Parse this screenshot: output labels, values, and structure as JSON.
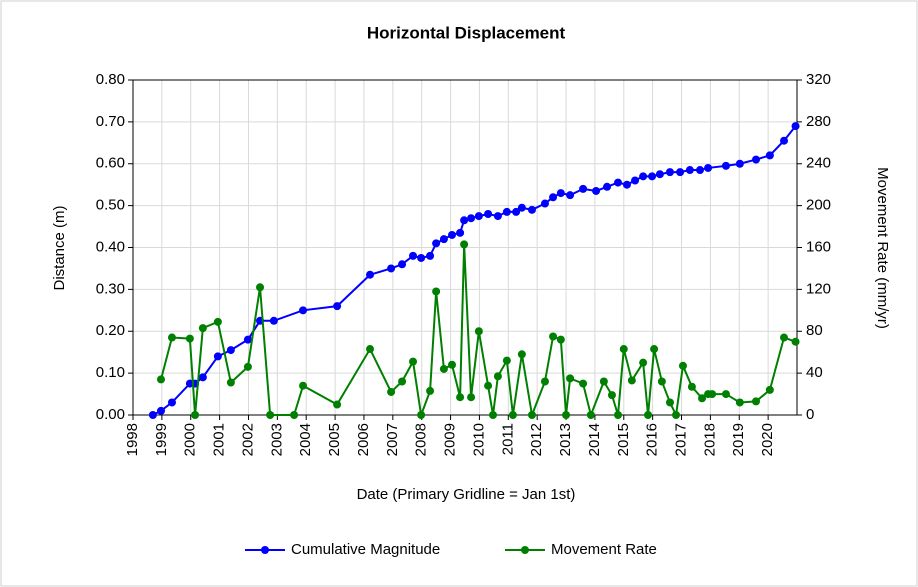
{
  "chart_data": {
    "type": "line",
    "title": "Horizontal Displacement",
    "xlabel": "Date (Primary Gridline = Jan 1st)",
    "ylabel": "Distance (m)",
    "y2label": "Movement Rate (mm/yr)",
    "xlim": [
      1998,
      2021
    ],
    "xticks": [
      1998,
      1999,
      2000,
      2001,
      2002,
      2003,
      2004,
      2005,
      2006,
      2007,
      2008,
      2009,
      2010,
      2011,
      2012,
      2013,
      2014,
      2015,
      2016,
      2017,
      2018,
      2019,
      2020
    ],
    "ylim": [
      0,
      0.8
    ],
    "yticks": [
      {
        "value": 0,
        "label": "0.00"
      },
      {
        "value": 0.1,
        "label": "0.10"
      },
      {
        "value": 0.2,
        "label": "0.20"
      },
      {
        "value": 0.3,
        "label": "0.30"
      },
      {
        "value": 0.4,
        "label": "0.40"
      },
      {
        "value": 0.5,
        "label": "0.50"
      },
      {
        "value": 0.6,
        "label": "0.60"
      },
      {
        "value": 0.7,
        "label": "0.70"
      },
      {
        "value": 0.8,
        "label": "0.80"
      }
    ],
    "y2lim": [
      0,
      320
    ],
    "y2ticks": [
      0,
      40,
      80,
      120,
      160,
      200,
      240,
      280,
      320
    ],
    "grid": true,
    "legend": "bottom",
    "series": [
      {
        "name": "Cumulative Magnitude",
        "color": "#0000ff",
        "x": [
          1998.69,
          1998.97,
          1999.35,
          1999.97,
          2000.15,
          2000.42,
          2000.94,
          2001.39,
          2001.98,
          2002.4,
          2002.88,
          2003.89,
          2005.07,
          2006.21,
          2006.94,
          2007.32,
          2007.7,
          2007.98,
          2008.29,
          2008.5,
          2008.77,
          2009.05,
          2009.33,
          2009.47,
          2009.71,
          2009.98,
          2010.3,
          2010.64,
          2010.95,
          2011.27,
          2011.47,
          2011.82,
          2012.27,
          2012.55,
          2012.82,
          2013.14,
          2013.59,
          2014.04,
          2014.42,
          2014.8,
          2015.11,
          2015.39,
          2015.67,
          2015.98,
          2016.25,
          2016.6,
          2016.95,
          2017.29,
          2017.64,
          2017.92,
          2018.54,
          2019.02,
          2019.58,
          2020.06,
          2020.55,
          2020.95
        ],
        "values": [
          0,
          0.01,
          0.03,
          0.075,
          0.075,
          0.09,
          0.14,
          0.155,
          0.18,
          0.225,
          0.225,
          0.25,
          0.26,
          0.335,
          0.35,
          0.36,
          0.38,
          0.375,
          0.38,
          0.41,
          0.42,
          0.43,
          0.435,
          0.465,
          0.47,
          0.475,
          0.48,
          0.475,
          0.485,
          0.485,
          0.495,
          0.49,
          0.505,
          0.52,
          0.53,
          0.525,
          0.54,
          0.535,
          0.545,
          0.555,
          0.55,
          0.56,
          0.57,
          0.57,
          0.575,
          0.58,
          0.58,
          0.585,
          0.585,
          0.59,
          0.595,
          0.6,
          0.61,
          0.62,
          0.655,
          0.69
        ]
      },
      {
        "name": "Movement Rate",
        "color": "#008000",
        "axis": "y2",
        "x": [
          1998.97,
          1999.35,
          1999.97,
          2000.15,
          2000.42,
          2000.94,
          2001.39,
          2001.98,
          2002.4,
          2002.75,
          2003.58,
          2003.89,
          2005.07,
          2006.21,
          2006.94,
          2007.32,
          2007.7,
          2007.98,
          2008.29,
          2008.5,
          2008.77,
          2009.05,
          2009.33,
          2009.47,
          2009.71,
          2009.98,
          2010.3,
          2010.47,
          2010.64,
          2010.95,
          2011.16,
          2011.47,
          2011.82,
          2012.27,
          2012.55,
          2012.82,
          2013.0,
          2013.14,
          2013.59,
          2013.86,
          2014.31,
          2014.59,
          2014.8,
          2015.0,
          2015.28,
          2015.67,
          2015.84,
          2016.05,
          2016.32,
          2016.6,
          2016.81,
          2017.05,
          2017.36,
          2017.71,
          2017.92,
          2018.06,
          2018.54,
          2019.02,
          2019.58,
          2020.06,
          2020.55,
          2020.95
        ],
        "values": [
          34,
          74,
          73,
          0,
          83,
          89,
          31,
          46,
          122,
          0,
          0,
          28,
          10,
          63,
          22,
          32,
          51,
          0,
          23,
          118,
          44,
          48,
          17,
          163,
          17,
          80,
          28,
          0,
          37,
          52,
          0,
          58,
          0,
          32,
          75,
          72,
          0,
          35,
          30,
          0,
          32,
          19,
          0,
          63,
          33,
          50,
          0,
          63,
          32,
          12,
          0,
          47,
          27,
          16,
          20,
          20,
          20,
          12,
          13,
          24,
          74,
          70
        ]
      }
    ]
  }
}
